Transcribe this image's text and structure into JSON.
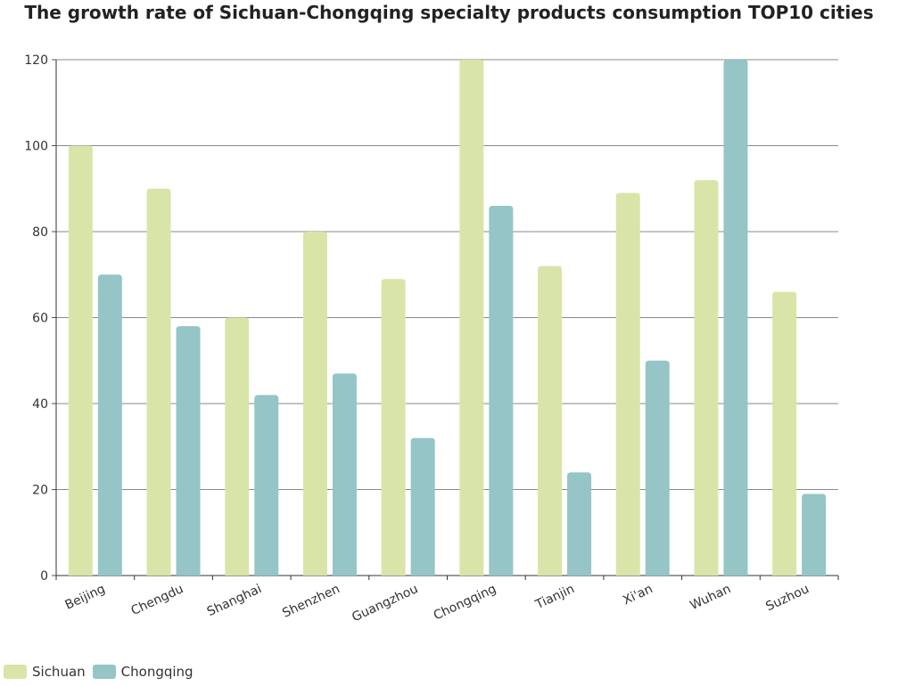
{
  "chart_data": {
    "type": "bar",
    "title": "The growth rate of Sichuan-Chongqing specialty products consumption TOP10 cities",
    "xlabel": "",
    "ylabel": "",
    "categories": [
      "Beijing",
      "Chengdu",
      "Shanghai",
      "Shenzhen",
      "Guangzhou",
      "Chongqing",
      "Tianjin",
      "Xi'an",
      "Wuhan",
      "Suzhou"
    ],
    "series": [
      {
        "name": "Sichuan",
        "color": "#d9e5a8",
        "values": [
          100,
          90,
          60,
          80,
          69,
          120,
          72,
          89,
          92,
          66
        ]
      },
      {
        "name": "Chongqing",
        "color": "#95c5c6",
        "values": [
          70,
          58,
          42,
          47,
          32,
          86,
          24,
          50,
          120,
          19
        ]
      }
    ],
    "ylim": [
      0,
      120
    ],
    "yticks": [
      0,
      20,
      40,
      60,
      80,
      100,
      120
    ],
    "grid": true,
    "legend_position": "bottom-left"
  }
}
